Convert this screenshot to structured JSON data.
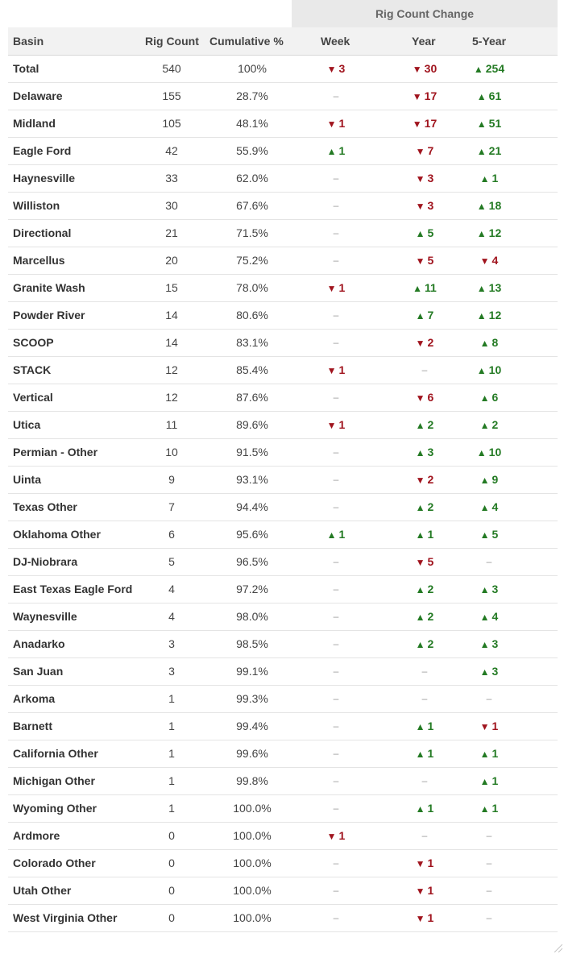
{
  "table": {
    "super_header": "Rig Count Change",
    "headers": {
      "basin": "Basin",
      "rig_count": "Rig Count",
      "cumulative": "Cumulative %",
      "week": "Week",
      "year": "Year",
      "five_year": "5-Year"
    },
    "colors": {
      "up": "#237a23",
      "down": "#a0141e",
      "flat": "#999999"
    },
    "flat_symbol": "–",
    "up_symbol": "▲",
    "down_symbol": "▼"
  },
  "chart_data": {
    "type": "table",
    "columns": [
      "Basin",
      "Rig Count",
      "Cumulative %",
      "Week",
      "Year",
      "5-Year"
    ],
    "rows": [
      {
        "basin": "Total",
        "count": 540,
        "cumulative": "100%",
        "week": -3,
        "year": -30,
        "five_year": 254
      },
      {
        "basin": "Delaware",
        "count": 155,
        "cumulative": "28.7%",
        "week": 0,
        "year": -17,
        "five_year": 61
      },
      {
        "basin": "Midland",
        "count": 105,
        "cumulative": "48.1%",
        "week": -1,
        "year": -17,
        "five_year": 51
      },
      {
        "basin": "Eagle Ford",
        "count": 42,
        "cumulative": "55.9%",
        "week": 1,
        "year": -7,
        "five_year": 21
      },
      {
        "basin": "Haynesville",
        "count": 33,
        "cumulative": "62.0%",
        "week": 0,
        "year": -3,
        "five_year": 1
      },
      {
        "basin": "Williston",
        "count": 30,
        "cumulative": "67.6%",
        "week": 0,
        "year": -3,
        "five_year": 18
      },
      {
        "basin": "Directional",
        "count": 21,
        "cumulative": "71.5%",
        "week": 0,
        "year": 5,
        "five_year": 12
      },
      {
        "basin": "Marcellus",
        "count": 20,
        "cumulative": "75.2%",
        "week": 0,
        "year": -5,
        "five_year": -4
      },
      {
        "basin": "Granite Wash",
        "count": 15,
        "cumulative": "78.0%",
        "week": -1,
        "year": 11,
        "five_year": 13
      },
      {
        "basin": "Powder River",
        "count": 14,
        "cumulative": "80.6%",
        "week": 0,
        "year": 7,
        "five_year": 12
      },
      {
        "basin": "SCOOP",
        "count": 14,
        "cumulative": "83.1%",
        "week": 0,
        "year": -2,
        "five_year": 8
      },
      {
        "basin": "STACK",
        "count": 12,
        "cumulative": "85.4%",
        "week": -1,
        "year": 0,
        "five_year": 10
      },
      {
        "basin": "Vertical",
        "count": 12,
        "cumulative": "87.6%",
        "week": 0,
        "year": -6,
        "five_year": 6
      },
      {
        "basin": "Utica",
        "count": 11,
        "cumulative": "89.6%",
        "week": -1,
        "year": 2,
        "five_year": 2
      },
      {
        "basin": "Permian - Other",
        "count": 10,
        "cumulative": "91.5%",
        "week": 0,
        "year": 3,
        "five_year": 10
      },
      {
        "basin": "Uinta",
        "count": 9,
        "cumulative": "93.1%",
        "week": 0,
        "year": -2,
        "five_year": 9
      },
      {
        "basin": "Texas Other",
        "count": 7,
        "cumulative": "94.4%",
        "week": 0,
        "year": 2,
        "five_year": 4
      },
      {
        "basin": "Oklahoma Other",
        "count": 6,
        "cumulative": "95.6%",
        "week": 1,
        "year": 1,
        "five_year": 5
      },
      {
        "basin": "DJ-Niobrara",
        "count": 5,
        "cumulative": "96.5%",
        "week": 0,
        "year": -5,
        "five_year": 0
      },
      {
        "basin": "East Texas Eagle Ford",
        "count": 4,
        "cumulative": "97.2%",
        "week": 0,
        "year": 2,
        "five_year": 3
      },
      {
        "basin": "Waynesville",
        "count": 4,
        "cumulative": "98.0%",
        "week": 0,
        "year": 2,
        "five_year": 4
      },
      {
        "basin": "Anadarko",
        "count": 3,
        "cumulative": "98.5%",
        "week": 0,
        "year": 2,
        "five_year": 3
      },
      {
        "basin": "San Juan",
        "count": 3,
        "cumulative": "99.1%",
        "week": 0,
        "year": 0,
        "five_year": 3
      },
      {
        "basin": "Arkoma",
        "count": 1,
        "cumulative": "99.3%",
        "week": 0,
        "year": 0,
        "five_year": 0
      },
      {
        "basin": "Barnett",
        "count": 1,
        "cumulative": "99.4%",
        "week": 0,
        "year": 1,
        "five_year": -1
      },
      {
        "basin": "California Other",
        "count": 1,
        "cumulative": "99.6%",
        "week": 0,
        "year": 1,
        "five_year": 1
      },
      {
        "basin": "Michigan Other",
        "count": 1,
        "cumulative": "99.8%",
        "week": 0,
        "year": 0,
        "five_year": 1
      },
      {
        "basin": "Wyoming Other",
        "count": 1,
        "cumulative": "100.0%",
        "week": 0,
        "year": 1,
        "five_year": 1
      },
      {
        "basin": "Ardmore",
        "count": 0,
        "cumulative": "100.0%",
        "week": -1,
        "year": 0,
        "five_year": 0
      },
      {
        "basin": "Colorado Other",
        "count": 0,
        "cumulative": "100.0%",
        "week": 0,
        "year": -1,
        "five_year": 0
      },
      {
        "basin": "Utah Other",
        "count": 0,
        "cumulative": "100.0%",
        "week": 0,
        "year": -1,
        "five_year": 0
      },
      {
        "basin": "West Virginia Other",
        "count": 0,
        "cumulative": "100.0%",
        "week": 0,
        "year": -1,
        "five_year": 0
      }
    ]
  }
}
